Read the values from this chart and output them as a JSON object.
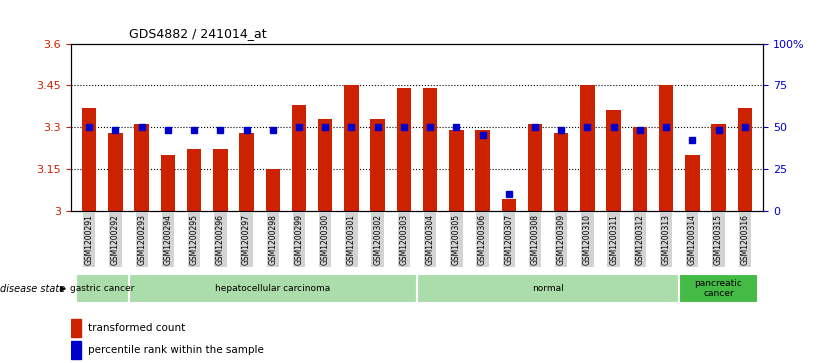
{
  "title": "GDS4882 / 241014_at",
  "samples": [
    "GSM1200291",
    "GSM1200292",
    "GSM1200293",
    "GSM1200294",
    "GSM1200295",
    "GSM1200296",
    "GSM1200297",
    "GSM1200298",
    "GSM1200299",
    "GSM1200300",
    "GSM1200301",
    "GSM1200302",
    "GSM1200303",
    "GSM1200304",
    "GSM1200305",
    "GSM1200306",
    "GSM1200307",
    "GSM1200308",
    "GSM1200309",
    "GSM1200310",
    "GSM1200311",
    "GSM1200312",
    "GSM1200313",
    "GSM1200314",
    "GSM1200315",
    "GSM1200316"
  ],
  "bar_values": [
    3.37,
    3.28,
    3.31,
    3.2,
    3.22,
    3.22,
    3.28,
    3.15,
    3.38,
    3.33,
    3.45,
    3.33,
    3.44,
    3.44,
    3.29,
    3.29,
    3.04,
    3.31,
    3.28,
    3.45,
    3.36,
    3.3,
    3.45,
    3.2,
    3.31,
    3.37
  ],
  "blue_dot_values": [
    50,
    48,
    50,
    48,
    48,
    48,
    48,
    48,
    50,
    50,
    50,
    50,
    50,
    50,
    50,
    45,
    10,
    50,
    48,
    50,
    50,
    48,
    50,
    42,
    48,
    50
  ],
  "ylim_left": [
    3.0,
    3.6
  ],
  "ylim_right": [
    0,
    100
  ],
  "yticks_left": [
    3.0,
    3.15,
    3.3,
    3.45,
    3.6
  ],
  "yticks_right": [
    0,
    25,
    50,
    75,
    100
  ],
  "ytick_labels_left": [
    "3",
    "3.15",
    "3.3",
    "3.45",
    "3.6"
  ],
  "ytick_labels_right": [
    "0",
    "25",
    "50",
    "75",
    "100%"
  ],
  "hlines": [
    3.15,
    3.3,
    3.45
  ],
  "bar_color": "#cc2200",
  "dot_color": "#0000cc",
  "bg_color": "#ffffff",
  "disease_groups": [
    {
      "label": "gastric cancer",
      "start": 0,
      "end": 2,
      "color": "#aaddaa"
    },
    {
      "label": "hepatocellular carcinoma",
      "start": 2,
      "end": 13,
      "color": "#aaddaa"
    },
    {
      "label": "normal",
      "start": 13,
      "end": 23,
      "color": "#aaddaa"
    },
    {
      "label": "pancreatic\ncancer",
      "start": 23,
      "end": 26,
      "color": "#44bb44"
    }
  ],
  "legend_red_label": "transformed count",
  "legend_blue_label": "percentile rank within the sample",
  "disease_state_label": "disease state"
}
